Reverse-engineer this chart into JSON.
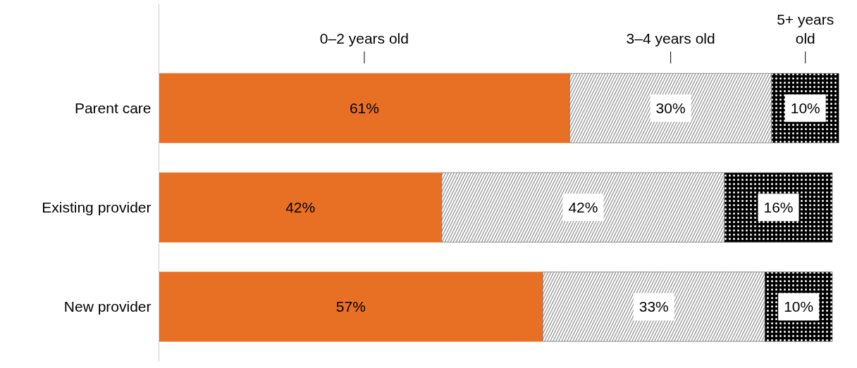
{
  "chart_data": {
    "type": "bar",
    "orientation": "horizontal",
    "stacked": true,
    "legend": "top",
    "tick_labels": "y",
    "grid": false,
    "categories": [
      "Parent care",
      "Existing provider",
      "New provider"
    ],
    "series": [
      {
        "name": "0–2 years old",
        "color": "#e87025",
        "values": [
          61,
          42,
          57
        ],
        "value_labels": [
          "61%",
          "42%",
          "57%"
        ]
      },
      {
        "name": "3–4 years old",
        "color": "#ffffff",
        "values": [
          30,
          42,
          33
        ],
        "value_labels": [
          "30%",
          "42%",
          "33%"
        ]
      },
      {
        "name": "5+ years old",
        "color": "#000000",
        "values": [
          10,
          16,
          10
        ],
        "value_labels": [
          "10%",
          "16%",
          "10%"
        ]
      }
    ]
  }
}
